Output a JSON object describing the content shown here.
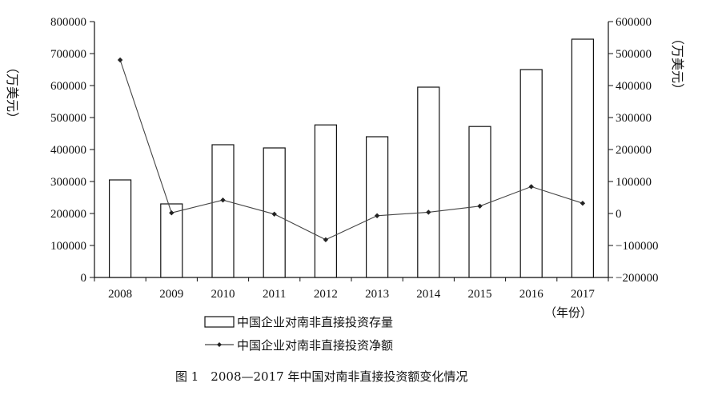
{
  "chart_data": {
    "type": "bar+line",
    "categories": [
      "2008",
      "2009",
      "2010",
      "2011",
      "2012",
      "2013",
      "2014",
      "2015",
      "2016",
      "2017"
    ],
    "series": [
      {
        "name": "中国企业对南非直接投资存量",
        "chart": "bar",
        "axis": "left",
        "values": [
          305000,
          230000,
          415000,
          405000,
          477000,
          440000,
          595000,
          472000,
          650000,
          745000
        ]
      },
      {
        "name": "中国企业对南非直接投资净额",
        "chart": "line",
        "axis": "right",
        "values": [
          480000,
          2000,
          42000,
          -2000,
          -82000,
          -7000,
          4000,
          23000,
          84000,
          32000
        ]
      }
    ],
    "left_axis": {
      "label": "（万美元）",
      "ylim": [
        0,
        800000
      ],
      "ticks": [
        "0",
        "100000",
        "200000",
        "300000",
        "400000",
        "500000",
        "600000",
        "700000",
        "800000"
      ]
    },
    "right_axis": {
      "label": "（万美元）",
      "ylim": [
        -200000,
        600000
      ],
      "ticks": [
        "−200000",
        "−100000",
        "0",
        "100000",
        "200000",
        "300000",
        "400000",
        "500000",
        "600000"
      ]
    },
    "xlabel": "（年份）",
    "caption": "图 1　2008—2017 年中国对南非直接投资额变化情况",
    "legend_position": "bottom-center",
    "colors": {
      "bar_fill": "#ffffff",
      "bar_stroke": "#111111",
      "line": "#444444",
      "marker": "#222222"
    }
  }
}
